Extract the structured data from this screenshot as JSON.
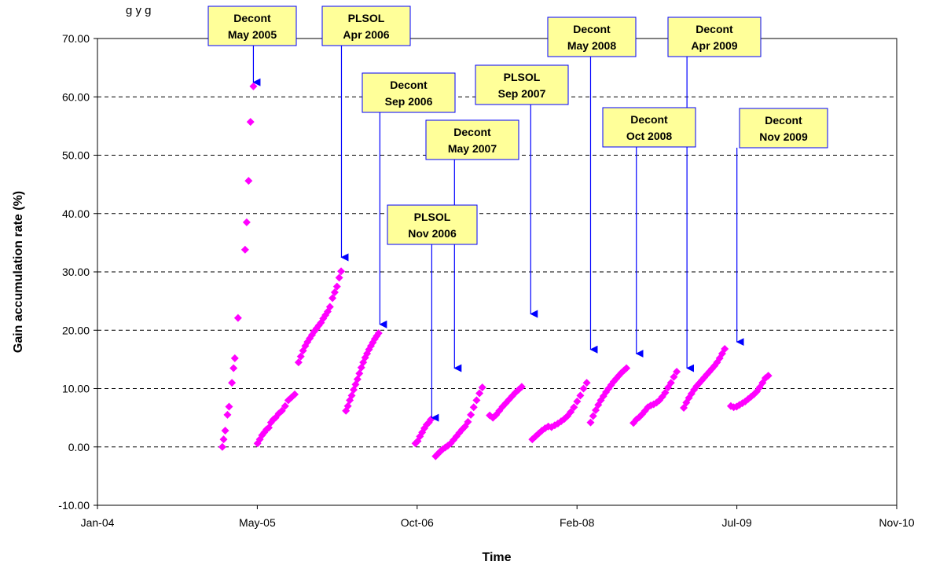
{
  "chart_data": {
    "type": "scatter",
    "title": "",
    "title_fragment": "g                                    y g",
    "xlabel": "Time",
    "ylabel": "Gain accumulation rate (%)",
    "x_ticks": [
      "Jan-04",
      "May-05",
      "Oct-06",
      "Feb-08",
      "Jul-09",
      "Nov-10"
    ],
    "x_range": [
      "2004-01-01",
      "2010-11-01"
    ],
    "y_ticks": [
      "-10.00",
      "0.00",
      "10.00",
      "20.00",
      "30.00",
      "40.00",
      "50.00",
      "60.00",
      "70.00"
    ],
    "ylim": [
      -10,
      70
    ],
    "grid": "horizontal dashed",
    "legend": "none",
    "marker": "diamond",
    "marker_color": "#ff00ff",
    "series": [
      {
        "points": [
          [
            "2005-01-25",
            0.0
          ],
          [
            "2005-01-29",
            1.3
          ],
          [
            "2005-02-03",
            2.8
          ],
          [
            "2005-02-10",
            5.5
          ],
          [
            "2005-02-15",
            6.9
          ],
          [
            "2005-02-24",
            11.0
          ],
          [
            "2005-03-01",
            13.5
          ],
          [
            "2005-03-05",
            15.2
          ],
          [
            "2005-03-15",
            22.1
          ],
          [
            "2005-04-06",
            33.8
          ],
          [
            "2005-04-11",
            38.5
          ],
          [
            "2005-04-17",
            45.6
          ],
          [
            "2005-04-23",
            55.7
          ],
          [
            "2005-05-02",
            61.8
          ]
        ]
      },
      {
        "points": [
          [
            "2005-05-15",
            0.6
          ],
          [
            "2005-05-22",
            1.3
          ],
          [
            "2005-05-29",
            2.0
          ],
          [
            "2005-06-05",
            2.5
          ],
          [
            "2005-06-12",
            3.0
          ],
          [
            "2005-06-19",
            3.3
          ],
          [
            "2005-06-26",
            4.2
          ],
          [
            "2005-07-03",
            4.7
          ],
          [
            "2005-07-10",
            5.0
          ],
          [
            "2005-07-20",
            5.7
          ],
          [
            "2005-07-30",
            6.2
          ],
          [
            "2005-08-09",
            7.0
          ],
          [
            "2005-08-19",
            8.0
          ],
          [
            "2005-08-29",
            8.5
          ],
          [
            "2005-09-08",
            9.0
          ],
          [
            "2005-09-20",
            14.5
          ],
          [
            "2005-09-27",
            15.5
          ],
          [
            "2005-10-04",
            16.5
          ],
          [
            "2005-10-11",
            17.3
          ],
          [
            "2005-10-18",
            18.0
          ],
          [
            "2005-10-25",
            18.6
          ],
          [
            "2005-11-01",
            19.2
          ],
          [
            "2005-11-08",
            19.8
          ],
          [
            "2005-11-15",
            20.3
          ],
          [
            "2005-11-22",
            20.8
          ],
          [
            "2005-11-29",
            21.3
          ],
          [
            "2005-12-06",
            22.0
          ],
          [
            "2005-12-13",
            22.6
          ],
          [
            "2005-12-20",
            23.2
          ],
          [
            "2005-12-27",
            24.0
          ],
          [
            "2006-01-04",
            25.5
          ],
          [
            "2006-01-11",
            26.5
          ],
          [
            "2006-01-18",
            27.5
          ],
          [
            "2006-01-25",
            29.0
          ],
          [
            "2006-01-31",
            30.1
          ]
        ]
      },
      {
        "points": [
          [
            "2006-02-15",
            6.2
          ],
          [
            "2006-02-21",
            7.0
          ],
          [
            "2006-02-27",
            8.0
          ],
          [
            "2006-03-05",
            8.8
          ],
          [
            "2006-03-11",
            9.8
          ],
          [
            "2006-03-17",
            10.7
          ],
          [
            "2006-03-23",
            11.6
          ],
          [
            "2006-03-29",
            12.6
          ],
          [
            "2006-04-04",
            13.6
          ],
          [
            "2006-04-10",
            14.5
          ],
          [
            "2006-04-16",
            15.3
          ],
          [
            "2006-04-22",
            16.0
          ],
          [
            "2006-04-28",
            16.7
          ],
          [
            "2006-05-04",
            17.3
          ],
          [
            "2006-05-10",
            17.9
          ],
          [
            "2006-05-16",
            18.5
          ],
          [
            "2006-05-22",
            19.0
          ],
          [
            "2006-05-28",
            19.5
          ]
        ]
      },
      {
        "points": [
          [
            "2006-09-20",
            0.6
          ],
          [
            "2006-09-27",
            1.0
          ],
          [
            "2006-10-04",
            1.8
          ],
          [
            "2006-10-11",
            2.5
          ],
          [
            "2006-10-18",
            3.2
          ],
          [
            "2006-10-25",
            3.8
          ],
          [
            "2006-11-01",
            4.2
          ],
          [
            "2006-11-07",
            4.7
          ]
        ]
      },
      {
        "points": [
          [
            "2006-11-22",
            -1.6
          ],
          [
            "2006-11-29",
            -1.2
          ],
          [
            "2006-12-06",
            -0.8
          ],
          [
            "2006-12-14",
            -0.4
          ],
          [
            "2006-12-22",
            -0.1
          ],
          [
            "2006-12-30",
            0.2
          ],
          [
            "2007-01-08",
            0.6
          ],
          [
            "2007-01-17",
            1.2
          ],
          [
            "2007-01-26",
            1.8
          ],
          [
            "2007-02-04",
            2.4
          ],
          [
            "2007-02-13",
            3.0
          ],
          [
            "2007-02-22",
            3.5
          ],
          [
            "2007-03-03",
            4.3
          ],
          [
            "2007-03-12",
            5.5
          ],
          [
            "2007-03-21",
            6.8
          ],
          [
            "2007-03-30",
            8.0
          ],
          [
            "2007-04-08",
            9.2
          ],
          [
            "2007-04-17",
            10.2
          ]
        ]
      },
      {
        "points": [
          [
            "2007-05-10",
            5.4
          ],
          [
            "2007-05-20",
            5.0
          ],
          [
            "2007-05-30",
            5.5
          ],
          [
            "2007-06-09",
            6.2
          ],
          [
            "2007-06-19",
            6.9
          ],
          [
            "2007-06-29",
            7.5
          ],
          [
            "2007-07-09",
            8.1
          ],
          [
            "2007-07-19",
            8.7
          ],
          [
            "2007-07-29",
            9.3
          ],
          [
            "2007-08-08",
            9.8
          ],
          [
            "2007-08-18",
            10.3
          ]
        ]
      },
      {
        "points": [
          [
            "2007-09-20",
            1.3
          ],
          [
            "2007-09-30",
            1.8
          ],
          [
            "2007-10-10",
            2.3
          ],
          [
            "2007-10-20",
            2.8
          ],
          [
            "2007-10-30",
            3.2
          ],
          [
            "2007-11-09",
            3.5
          ],
          [
            "2007-11-19",
            3.4
          ],
          [
            "2007-11-29",
            3.7
          ],
          [
            "2007-12-09",
            4.0
          ],
          [
            "2007-12-19",
            4.4
          ],
          [
            "2007-12-29",
            4.8
          ],
          [
            "2008-01-08",
            5.3
          ],
          [
            "2008-01-18",
            6.0
          ],
          [
            "2008-01-28",
            6.8
          ],
          [
            "2008-02-07",
            7.8
          ],
          [
            "2008-02-17",
            8.8
          ],
          [
            "2008-02-27",
            10.0
          ],
          [
            "2008-03-08",
            11.0
          ]
        ]
      },
      {
        "points": [
          [
            "2008-03-20",
            4.2
          ],
          [
            "2008-03-28",
            5.3
          ],
          [
            "2008-04-05",
            6.3
          ],
          [
            "2008-04-13",
            7.2
          ],
          [
            "2008-04-21",
            8.0
          ],
          [
            "2008-04-29",
            8.7
          ],
          [
            "2008-05-07",
            9.4
          ],
          [
            "2008-05-15",
            10.0
          ],
          [
            "2008-05-23",
            10.6
          ],
          [
            "2008-05-31",
            11.2
          ],
          [
            "2008-06-08",
            11.7
          ],
          [
            "2008-06-16",
            12.2
          ],
          [
            "2008-06-24",
            12.7
          ],
          [
            "2008-07-02",
            13.1
          ],
          [
            "2008-07-10",
            13.5
          ]
        ]
      },
      {
        "points": [
          [
            "2008-08-01",
            4.1
          ],
          [
            "2008-08-10",
            4.7
          ],
          [
            "2008-08-19",
            5.1
          ],
          [
            "2008-08-28",
            5.6
          ],
          [
            "2008-09-06",
            6.2
          ],
          [
            "2008-09-15",
            6.8
          ],
          [
            "2008-09-24",
            7.1
          ],
          [
            "2008-10-03",
            7.3
          ],
          [
            "2008-10-12",
            7.6
          ],
          [
            "2008-10-21",
            8.0
          ],
          [
            "2008-10-30",
            8.6
          ],
          [
            "2008-11-08",
            9.3
          ],
          [
            "2008-11-17",
            10.2
          ],
          [
            "2008-11-26",
            11.0
          ],
          [
            "2008-12-05",
            12.0
          ],
          [
            "2008-12-14",
            12.9
          ]
        ]
      },
      {
        "points": [
          [
            "2009-01-05",
            6.7
          ],
          [
            "2009-01-13",
            7.6
          ],
          [
            "2009-01-21",
            8.4
          ],
          [
            "2009-01-29",
            9.1
          ],
          [
            "2009-02-06",
            9.8
          ],
          [
            "2009-02-14",
            10.4
          ],
          [
            "2009-02-22",
            10.9
          ],
          [
            "2009-03-02",
            11.4
          ],
          [
            "2009-03-10",
            11.9
          ],
          [
            "2009-03-18",
            12.4
          ],
          [
            "2009-03-26",
            12.9
          ],
          [
            "2009-04-03",
            13.4
          ],
          [
            "2009-04-11",
            13.9
          ],
          [
            "2009-04-19",
            14.5
          ],
          [
            "2009-04-27",
            15.2
          ],
          [
            "2009-05-05",
            16.0
          ],
          [
            "2009-05-13",
            16.8
          ]
        ]
      },
      {
        "points": [
          [
            "2009-06-01",
            7.0
          ],
          [
            "2009-06-10",
            6.8
          ],
          [
            "2009-06-19",
            6.9
          ],
          [
            "2009-06-28",
            7.2
          ],
          [
            "2009-07-07",
            7.5
          ],
          [
            "2009-07-16",
            7.8
          ],
          [
            "2009-07-25",
            8.2
          ],
          [
            "2009-08-03",
            8.6
          ],
          [
            "2009-08-12",
            9.0
          ],
          [
            "2009-08-21",
            9.5
          ],
          [
            "2009-08-30",
            10.2
          ],
          [
            "2009-09-08",
            11.0
          ],
          [
            "2009-09-17",
            11.8
          ],
          [
            "2009-09-26",
            12.2
          ]
        ]
      }
    ],
    "annotations": [
      {
        "lines": [
          "Decont",
          "May 2005"
        ],
        "arrow_date": "2005-05-02",
        "arrow_to": 62.5
      },
      {
        "lines": [
          "PLSOL",
          "Apr 2006"
        ],
        "arrow_date": "2006-02-01",
        "arrow_to": 32.5
      },
      {
        "lines": [
          "Decont",
          "Sep 2006"
        ],
        "arrow_date": "2006-06-01",
        "arrow_to": 21.0
      },
      {
        "lines": [
          "Decont",
          "May 2007"
        ],
        "arrow_date": "2007-01-20",
        "arrow_to": 13.5
      },
      {
        "lines": [
          "PLSOL",
          "Nov 2006"
        ],
        "arrow_date": "2006-11-10",
        "arrow_to": 5.0
      },
      {
        "lines": [
          "PLSOL",
          "Sep 2007"
        ],
        "arrow_date": "2007-09-15",
        "arrow_to": 22.8
      },
      {
        "lines": [
          "Decont",
          "May 2008"
        ],
        "arrow_date": "2008-03-20",
        "arrow_to": 16.7
      },
      {
        "lines": [
          "Decont",
          "Oct 2008"
        ],
        "arrow_date": "2008-08-10",
        "arrow_to": 16.0
      },
      {
        "lines": [
          "Decont",
          "Apr 2009"
        ],
        "arrow_date": "2009-01-15",
        "arrow_to": 13.5
      },
      {
        "lines": [
          "Decont",
          "Nov 2009"
        ],
        "arrow_date": "2009-06-20",
        "arrow_to": 18.0
      }
    ],
    "callout_fill": "#ffff99",
    "callout_border": "#0000ff",
    "arrow_color": "#0000ff"
  }
}
